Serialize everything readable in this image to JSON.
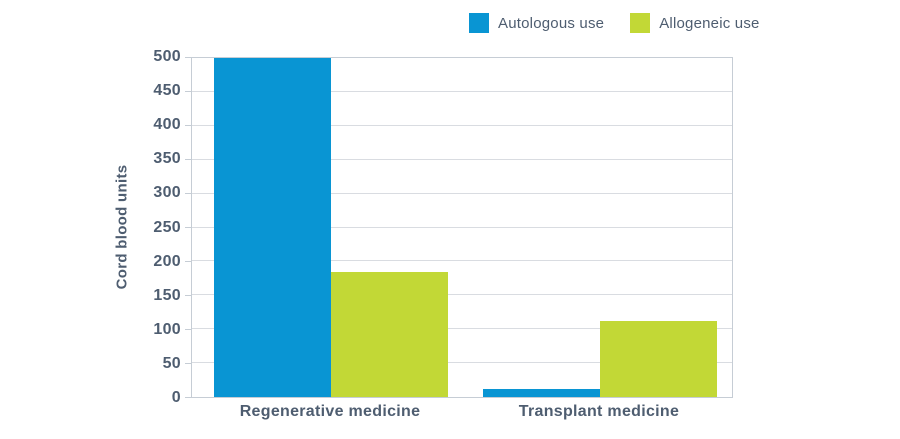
{
  "chart_data": {
    "type": "bar",
    "title": "",
    "categories": [
      "Regenerative medicine",
      "Transplant medicine"
    ],
    "series": [
      {
        "name": "Autologous use",
        "color": "#0995d3",
        "values": [
          500,
          12
        ]
      },
      {
        "name": "Allogeneic use",
        "color": "#c2d836",
        "values": [
          185,
          112
        ]
      }
    ],
    "xlabel": "",
    "ylabel": "Cord blood units",
    "ylim": [
      0,
      500
    ],
    "yticks": [
      0,
      50,
      100,
      150,
      200,
      250,
      300,
      350,
      400,
      450,
      500
    ],
    "grid": true,
    "legend_position": "top-center"
  },
  "colors": {
    "text": "#4e5d70",
    "gridline": "#d9dce1",
    "axis": "#c6cdd5",
    "background": "#ffffff"
  }
}
